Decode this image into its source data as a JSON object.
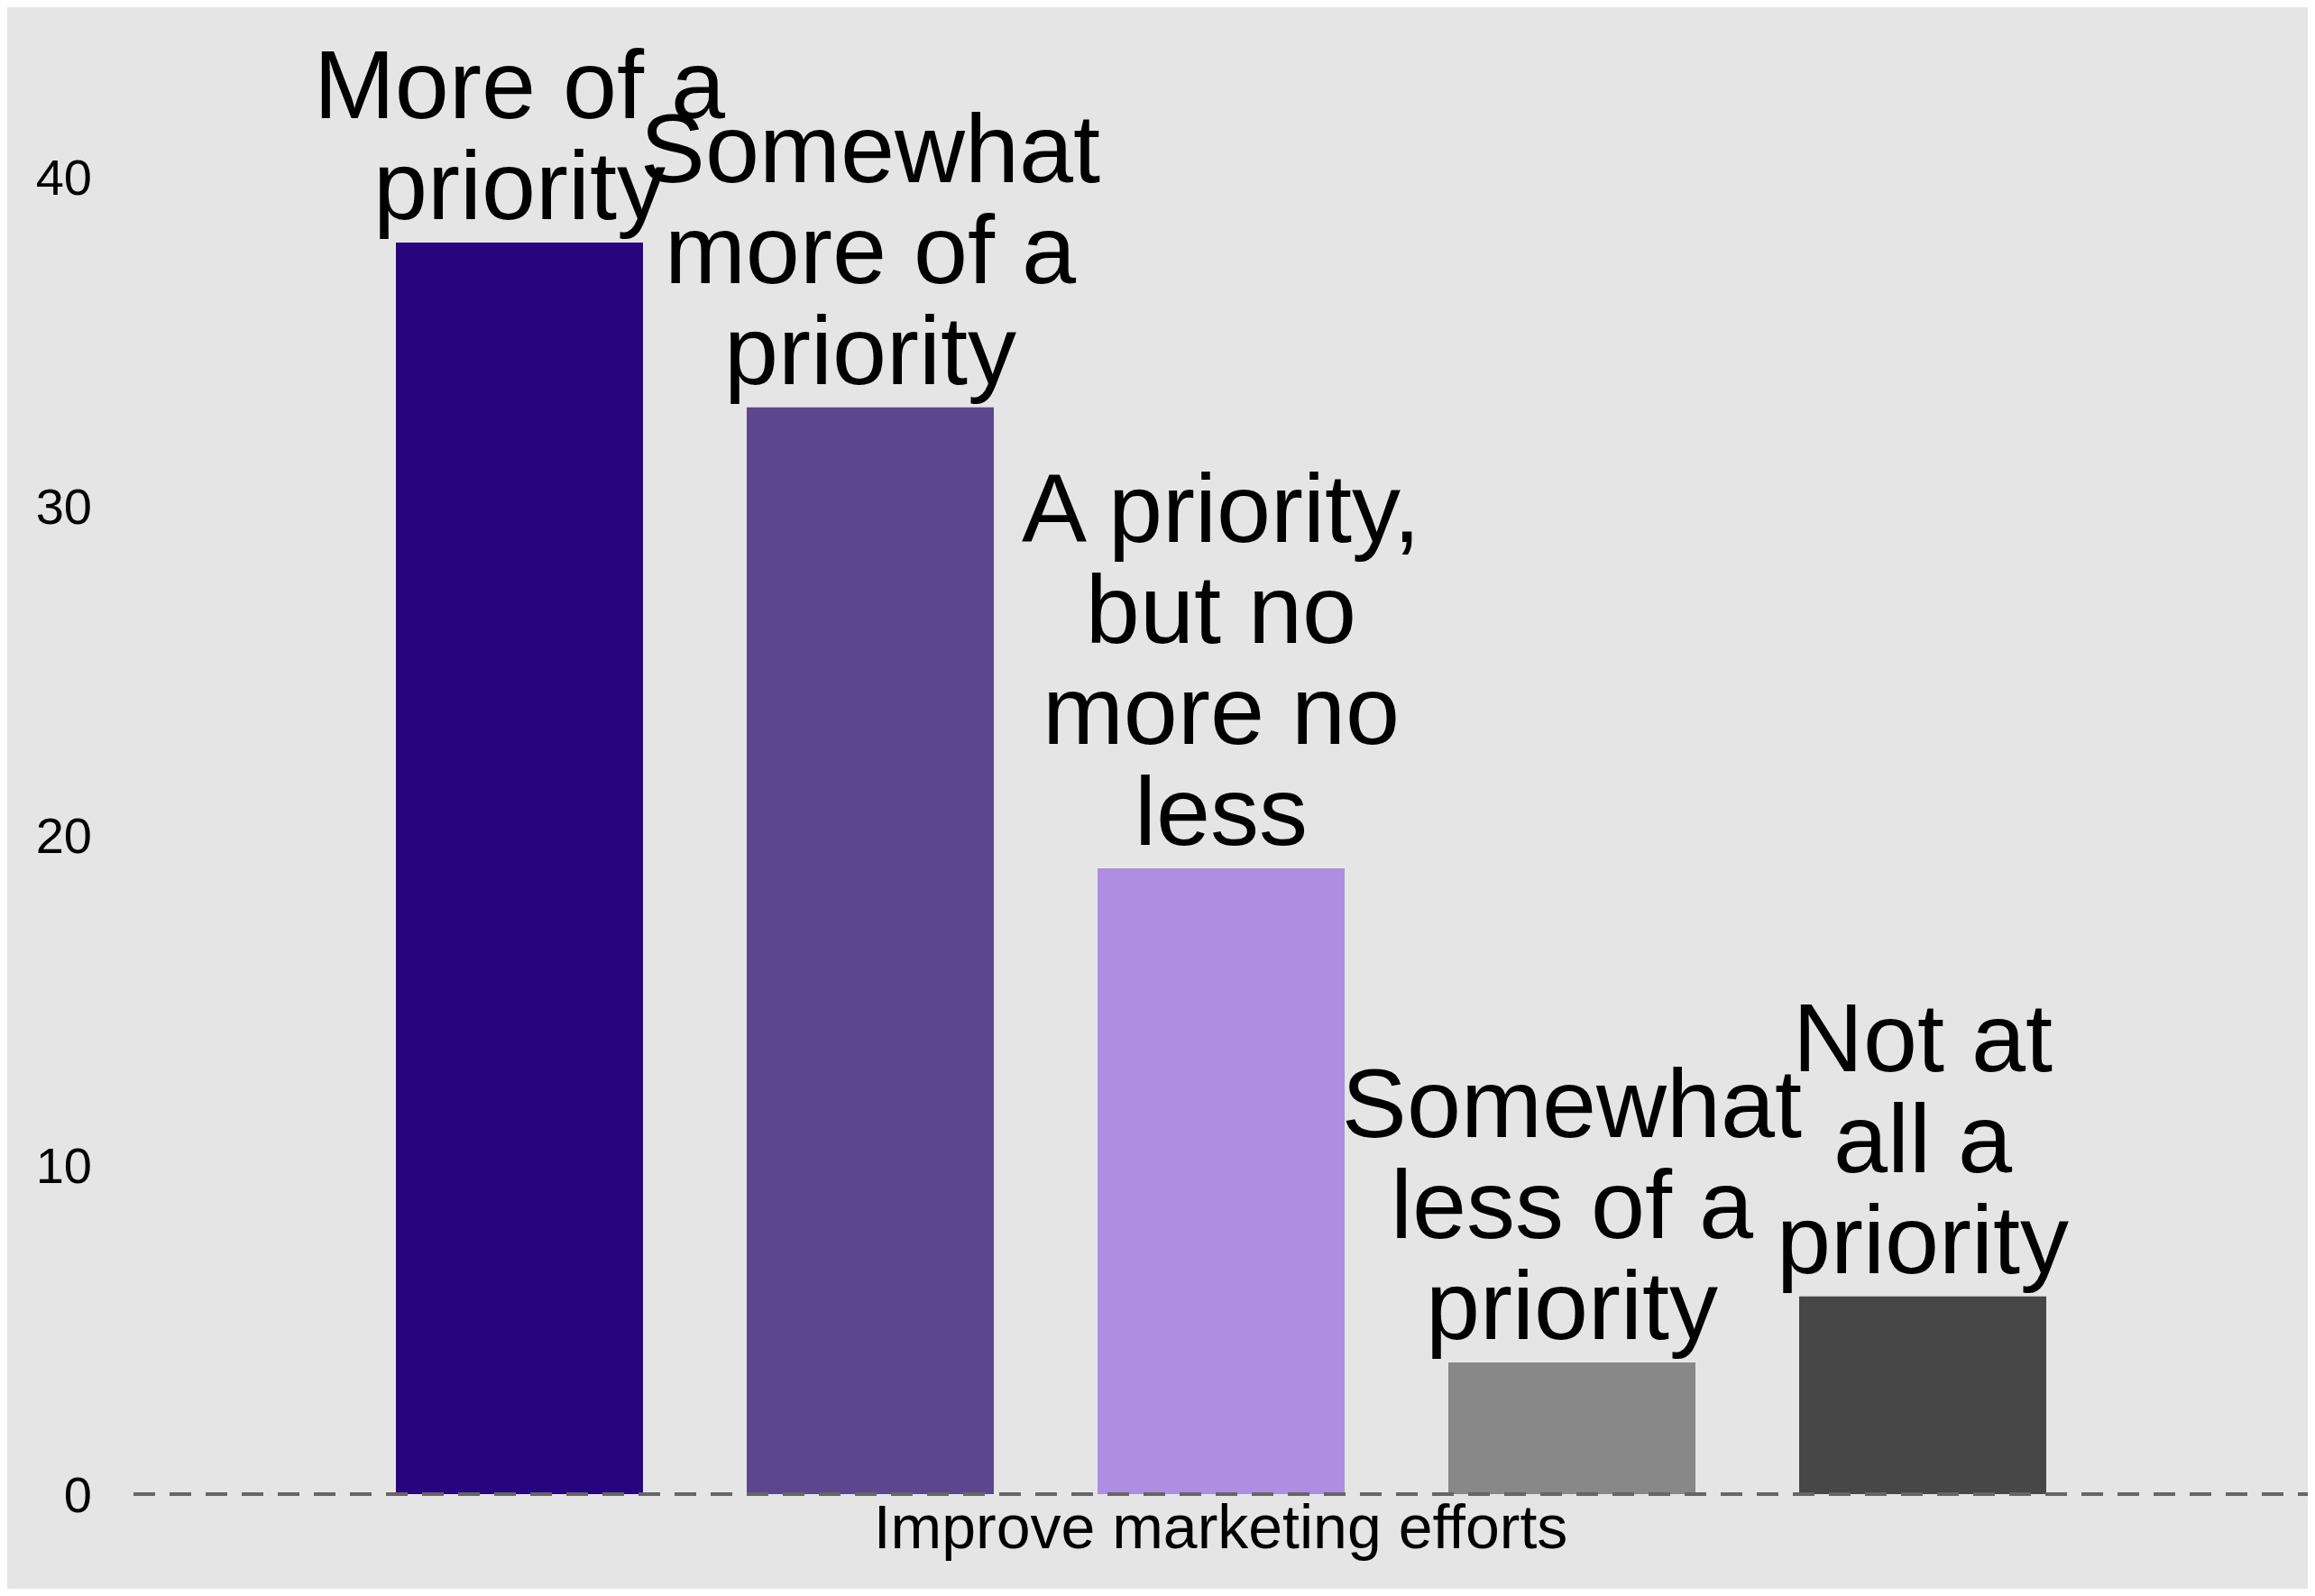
{
  "chart_data": {
    "type": "bar",
    "categories": [
      "Improve marketing efforts"
    ],
    "series": [
      {
        "name": "More of a\npriority",
        "color": "#29047f",
        "values": [
          38
        ]
      },
      {
        "name": "Somewhat\nmore of a\npriority",
        "color": "#5c478e",
        "values": [
          33
        ]
      },
      {
        "name": "A priority,\nbut no\nmore no\nless",
        "color": "#ae8ee1",
        "values": [
          19
        ]
      },
      {
        "name": "Somewhat\nless of a\npriority",
        "color": "#888888",
        "values": [
          4
        ]
      },
      {
        "name": "Not at\nall a\npriority",
        "color": "#474747",
        "values": [
          6
        ]
      }
    ],
    "ylim": [
      0,
      40
    ],
    "yticks": [
      0,
      10,
      20,
      30,
      40
    ],
    "grid": false,
    "legend": false,
    "ref_lines": [
      {
        "axis": "y",
        "value": 0,
        "color": "#666666",
        "line_style": "dashed"
      }
    ]
  }
}
